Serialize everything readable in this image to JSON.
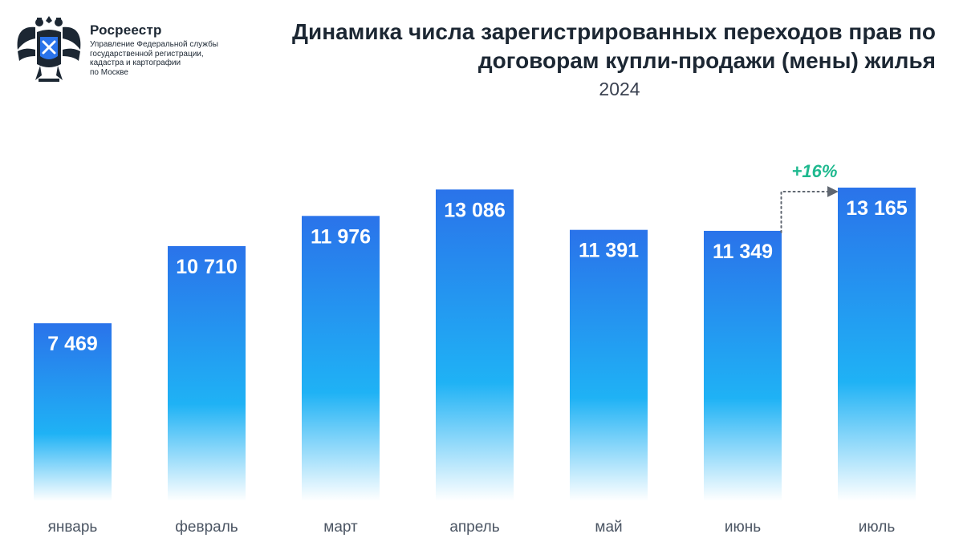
{
  "header": {
    "org_name": "Росреестр",
    "org_sub_lines": [
      "Управление Федеральной службы",
      "государственной регистрации,",
      "кадастра и картографии",
      "по Москве"
    ],
    "emblem_icon": "double-headed-eagle-emblem-icon"
  },
  "colors": {
    "bar_top": "#2a73ea",
    "bar_mid": "#1fb2f5",
    "bar_bottom": "#ffffff",
    "value_label": "#ffffff",
    "annotation": "#1fb98f",
    "text_dark": "#1c2733",
    "tick": "#4b5563"
  },
  "chart_data": {
    "type": "bar",
    "title": "Динамика числа зарегистрированных переходов прав по договорам купли-продажи (мены) жилья",
    "subtitle": "2024",
    "categories": [
      "январь",
      "февраль",
      "март",
      "апрель",
      "май",
      "июнь",
      "июль"
    ],
    "values": [
      7469,
      10710,
      11976,
      13086,
      11391,
      11349,
      13165
    ],
    "value_labels": [
      "7 469",
      "10 710",
      "11 976",
      "13 086",
      "11 391",
      "11 349",
      "13 165"
    ],
    "xlabel": "",
    "ylabel": "",
    "grid": false,
    "annotation": {
      "text": "+16%",
      "from_category": "июнь",
      "to_category": "июль",
      "style": "dotted-arrow"
    }
  }
}
